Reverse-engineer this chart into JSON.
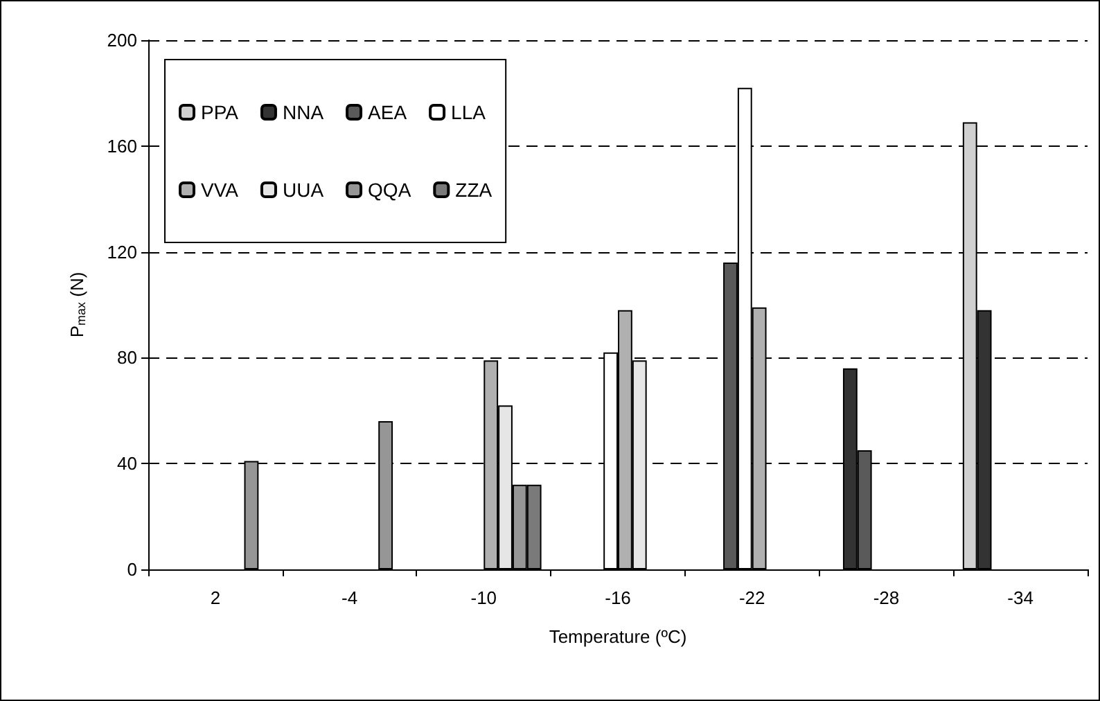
{
  "chart_data": {
    "type": "bar",
    "xlabel": "Temperature (ºC)",
    "ylabel": "P$_{max}$ (N)",
    "categories": [
      "2",
      "-4",
      "-10",
      "-16",
      "-22",
      "-28",
      "-34"
    ],
    "series": [
      {
        "name": "PPA",
        "color": "#d0d0d0",
        "values": [
          null,
          null,
          null,
          null,
          null,
          null,
          169
        ]
      },
      {
        "name": "NNA",
        "color": "#333333",
        "values": [
          null,
          null,
          null,
          null,
          null,
          76,
          98
        ]
      },
      {
        "name": "AEA",
        "color": "#5a5a5a",
        "values": [
          null,
          null,
          null,
          null,
          116,
          45,
          null
        ]
      },
      {
        "name": "LLA",
        "color": "#ffffff",
        "values": [
          null,
          null,
          null,
          82,
          182,
          null,
          null
        ]
      },
      {
        "name": "VVA",
        "color": "#b0b0b0",
        "values": [
          null,
          null,
          79,
          98,
          99,
          null,
          null
        ]
      },
      {
        "name": "UUA",
        "color": "#e6e6e6",
        "values": [
          null,
          null,
          62,
          79,
          null,
          null,
          null
        ]
      },
      {
        "name": "QQA",
        "color": "#969696",
        "values": [
          41,
          56,
          32,
          null,
          null,
          null,
          null
        ]
      },
      {
        "name": "ZZA",
        "color": "#7a7a7a",
        "values": [
          null,
          null,
          32,
          null,
          null,
          null,
          null
        ]
      }
    ],
    "ylim": [
      0,
      200
    ],
    "yticks": [
      0,
      40,
      80,
      120,
      160,
      200
    ],
    "grid": "y",
    "legend": "top left"
  }
}
